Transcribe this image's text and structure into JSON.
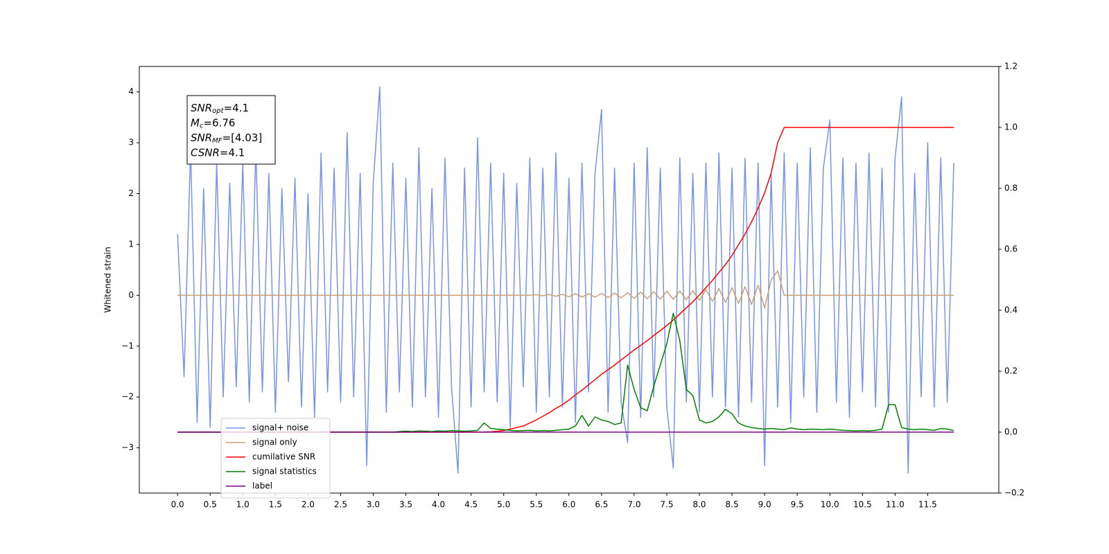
{
  "chart_data": {
    "type": "line",
    "ylabel": "Whitened strain",
    "xlim": [
      -0.586,
      12.59
    ],
    "ylim": [
      -3.89,
      4.5
    ],
    "y2lim": [
      -0.2,
      1.2
    ],
    "xticks": [
      {
        "value": 0,
        "label": "0.0"
      },
      0.5,
      {
        "value": 1,
        "label": "1.0"
      },
      1.5,
      {
        "value": 2,
        "label": "2.0"
      },
      2.5,
      {
        "value": 3,
        "label": "3.0"
      },
      3.5,
      {
        "value": 4,
        "label": "4.0"
      },
      4.5,
      {
        "value": 5,
        "label": "5.0"
      },
      5.5,
      {
        "value": 6,
        "label": "6.0"
      },
      6.5,
      {
        "value": 7,
        "label": "7.0"
      },
      7.5,
      {
        "value": 8,
        "label": "8.0"
      },
      8.5,
      {
        "value": 9,
        "label": "9.0"
      },
      9.5,
      {
        "value": 10,
        "label": "10.0"
      },
      10.5,
      {
        "value": 11,
        "label": "11.0"
      },
      11.5
    ],
    "yticks": [
      {
        "value": -3,
        "label": "−3"
      },
      {
        "value": -2,
        "label": "−2"
      },
      {
        "value": -1,
        "label": "−1"
      },
      0,
      1,
      2,
      3,
      4
    ],
    "y2ticks": [
      {
        "value": -0.2,
        "label": "−0.2"
      },
      {
        "value": 0,
        "label": "0.0"
      },
      0.2,
      0.4,
      0.6,
      0.8,
      {
        "value": 1,
        "label": "1.0"
      },
      1.2
    ],
    "legend": "lower left",
    "annotations": [
      {
        "symbol": "SNR",
        "subscript": "opt",
        "text": "=4.1"
      },
      {
        "symbol": "M",
        "subscript": "c",
        "text": "=6.76"
      },
      {
        "symbol": "SNR",
        "subscript": "MF",
        "text": "=[4.03]"
      },
      {
        "symbol": "CSNR",
        "subscript": "",
        "text": "=4.1"
      }
    ],
    "x": [
      0,
      0.1,
      0.2,
      0.3,
      0.4,
      0.5,
      0.6,
      0.7,
      0.8,
      0.9,
      1,
      1.1,
      1.2,
      1.3,
      1.4,
      1.5,
      1.6,
      1.7,
      1.8,
      1.9,
      2,
      2.1,
      2.2,
      2.3,
      2.4,
      2.5,
      2.6,
      2.7,
      2.8,
      2.9,
      3,
      3.1,
      3.2,
      3.3,
      3.4,
      3.5,
      3.6,
      3.7,
      3.8,
      3.9,
      4,
      4.1,
      4.2,
      4.3,
      4.4,
      4.5,
      4.6,
      4.7,
      4.8,
      4.9,
      5,
      5.1,
      5.2,
      5.3,
      5.4,
      5.5,
      5.6,
      5.7,
      5.8,
      5.9,
      6,
      6.1,
      6.2,
      6.3,
      6.4,
      6.5,
      6.6,
      6.7,
      6.8,
      6.9,
      7,
      7.1,
      7.2,
      7.3,
      7.4,
      7.5,
      7.6,
      7.7,
      7.8,
      7.9,
      8,
      8.1,
      8.2,
      8.3,
      8.4,
      8.5,
      8.6,
      8.7,
      8.8,
      8.9,
      9,
      9.1,
      9.2,
      9.3,
      9.4,
      9.5,
      9.6,
      9.7,
      9.8,
      9.9,
      10,
      10.1,
      10.2,
      10.3,
      10.4,
      10.5,
      10.6,
      10.7,
      10.8,
      10.9,
      11,
      11.1,
      11.2,
      11.3,
      11.4,
      11.5,
      11.6,
      11.7,
      11.8,
      11.9
    ],
    "series": [
      {
        "name": "signal+ noise",
        "color": "#7893e8",
        "axis": "y",
        "values": [
          1.2,
          -1.6,
          2.9,
          -2.5,
          2.1,
          -2.6,
          2.6,
          -2.0,
          2.2,
          -1.8,
          2.6,
          -2.1,
          2.9,
          -1.9,
          2.4,
          -2.3,
          2.1,
          -1.7,
          2.3,
          -2.2,
          2.0,
          -2.4,
          2.8,
          -1.9,
          2.5,
          -2.1,
          3.2,
          -2.0,
          2.4,
          -3.35,
          2.2,
          4.1,
          -2.3,
          2.6,
          -1.9,
          2.3,
          -2.2,
          2.9,
          -2.0,
          2.1,
          -2.4,
          2.7,
          -1.8,
          -3.5,
          2.5,
          -2.2,
          3.1,
          -1.9,
          2.6,
          -2.1,
          2.4,
          -2.6,
          2.2,
          -1.8,
          2.7,
          -2.3,
          2.5,
          -2.0,
          2.8,
          -2.2,
          2.3,
          -2.5,
          2.6,
          -1.9,
          2.4,
          3.65,
          -2.3,
          2.5,
          -2.1,
          -2.9,
          2.6,
          -2.4,
          2.9,
          -2.0,
          2.5,
          -2.2,
          -3.4,
          2.7,
          -2.1,
          2.4,
          -2.3,
          2.6,
          -2.0,
          2.8,
          -2.2,
          2.5,
          -2.4,
          2.7,
          -2.1,
          2.6,
          -3.35,
          2.4,
          -2.2,
          2.8,
          -2.5,
          2.6,
          -2.0,
          2.9,
          -2.3,
          2.5,
          3.45,
          -2.1,
          2.7,
          -2.4,
          2.6,
          -1.9,
          2.8,
          -2.2,
          2.5,
          -2.3,
          2.7,
          3.9,
          -3.5,
          2.4,
          -2.0,
          3.0,
          -2.2,
          2.7,
          -2.1,
          2.6
        ]
      },
      {
        "name": "signal only",
        "color": "#c6a070",
        "axis": "y",
        "values": [
          0,
          0,
          0,
          0,
          0,
          0,
          0,
          0,
          0,
          0,
          0,
          0,
          0,
          0,
          0,
          0,
          0,
          0,
          0,
          0,
          0,
          0,
          0,
          0,
          0,
          0,
          0,
          0,
          0,
          0,
          0,
          0,
          0,
          0,
          0,
          0,
          0,
          0,
          0,
          0,
          0,
          0,
          0,
          0,
          0,
          0,
          0,
          0,
          0,
          0,
          0,
          0,
          0,
          0,
          0,
          0.01,
          -0.01,
          0.015,
          -0.02,
          0.02,
          -0.03,
          0.03,
          -0.035,
          0.035,
          -0.04,
          0.04,
          -0.045,
          0.045,
          -0.05,
          0.05,
          -0.06,
          0.065,
          -0.07,
          0.07,
          -0.075,
          0.08,
          -0.08,
          0.085,
          -0.09,
          0.09,
          -0.1,
          0.11,
          -0.12,
          0.13,
          -0.14,
          0.15,
          -0.16,
          0.17,
          -0.18,
          0.2,
          -0.25,
          0.3,
          0.48,
          0,
          0,
          0,
          0,
          0,
          0,
          0,
          0,
          0,
          0,
          0,
          0,
          0,
          0,
          0,
          0,
          0,
          0,
          0,
          0,
          0,
          0,
          0,
          0,
          0,
          0,
          0
        ]
      },
      {
        "name": "cumilative SNR",
        "color": "#ff0000",
        "axis": "y2",
        "values": [
          0,
          0,
          0,
          0,
          0,
          0,
          0,
          0,
          0,
          0,
          0,
          0,
          0,
          0,
          0,
          0,
          0,
          0,
          0,
          0,
          0,
          0,
          0,
          0,
          0,
          0,
          0,
          0,
          0,
          0,
          0,
          0,
          0,
          0,
          0,
          0,
          0,
          0,
          0,
          0,
          0,
          0,
          0,
          0,
          0,
          0,
          0,
          0,
          0.001,
          0.003,
          0.005,
          0.01,
          0.015,
          0.02,
          0.03,
          0.04,
          0.052,
          0.064,
          0.078,
          0.09,
          0.105,
          0.122,
          0.138,
          0.155,
          0.172,
          0.19,
          0.205,
          0.22,
          0.237,
          0.253,
          0.27,
          0.285,
          0.3,
          0.317,
          0.333,
          0.35,
          0.368,
          0.388,
          0.408,
          0.428,
          0.45,
          0.474,
          0.498,
          0.524,
          0.55,
          0.58,
          0.615,
          0.65,
          0.69,
          0.735,
          0.785,
          0.85,
          0.95,
          1,
          1,
          1,
          1,
          1,
          1,
          1,
          1,
          1,
          1,
          1,
          1,
          1,
          1,
          1,
          1,
          1,
          1,
          1,
          1,
          1,
          1,
          1,
          1,
          1,
          1,
          1
        ]
      },
      {
        "name": "signal statistics",
        "color": "#008000",
        "axis": "y2",
        "values": [
          0,
          0,
          0,
          0,
          0,
          0,
          0,
          0,
          0,
          0,
          0,
          0,
          0,
          0,
          0,
          0,
          0,
          0,
          0,
          0,
          0,
          0,
          0,
          0,
          0,
          0,
          0,
          0,
          0,
          0,
          0,
          0,
          0,
          0,
          0.002,
          0.003,
          0.002,
          0.004,
          0.003,
          0.002,
          0.004,
          0.003,
          0.005,
          0.004,
          0.003,
          0.004,
          0.006,
          0.03,
          0.012,
          0.01,
          0.008,
          0.006,
          0.004,
          0.005,
          0.006,
          0.004,
          0.005,
          0.004,
          0.006,
          0.008,
          0.01,
          0.02,
          0.055,
          0.02,
          0.05,
          0.04,
          0.035,
          0.025,
          0.03,
          0.22,
          0.14,
          0.08,
          0.07,
          0.15,
          0.22,
          0.29,
          0.39,
          0.3,
          0.14,
          0.12,
          0.04,
          0.03,
          0.035,
          0.05,
          0.075,
          0.06,
          0.03,
          0.02,
          0.015,
          0.012,
          0.01,
          0.012,
          0.01,
          0.008,
          0.014,
          0.01,
          0.008,
          0.01,
          0.009,
          0.008,
          0.01,
          0.008,
          0.006,
          0.005,
          0.004,
          0.005,
          0.004,
          0.006,
          0.01,
          0.09,
          0.09,
          0.015,
          0.01,
          0.008,
          0.01,
          0.008,
          0.006,
          0.012,
          0.01,
          0.005
        ]
      },
      {
        "name": "label",
        "color": "#800080",
        "axis": "y2",
        "x": [
          0,
          11.9
        ],
        "values": [
          0,
          0
        ]
      }
    ]
  }
}
